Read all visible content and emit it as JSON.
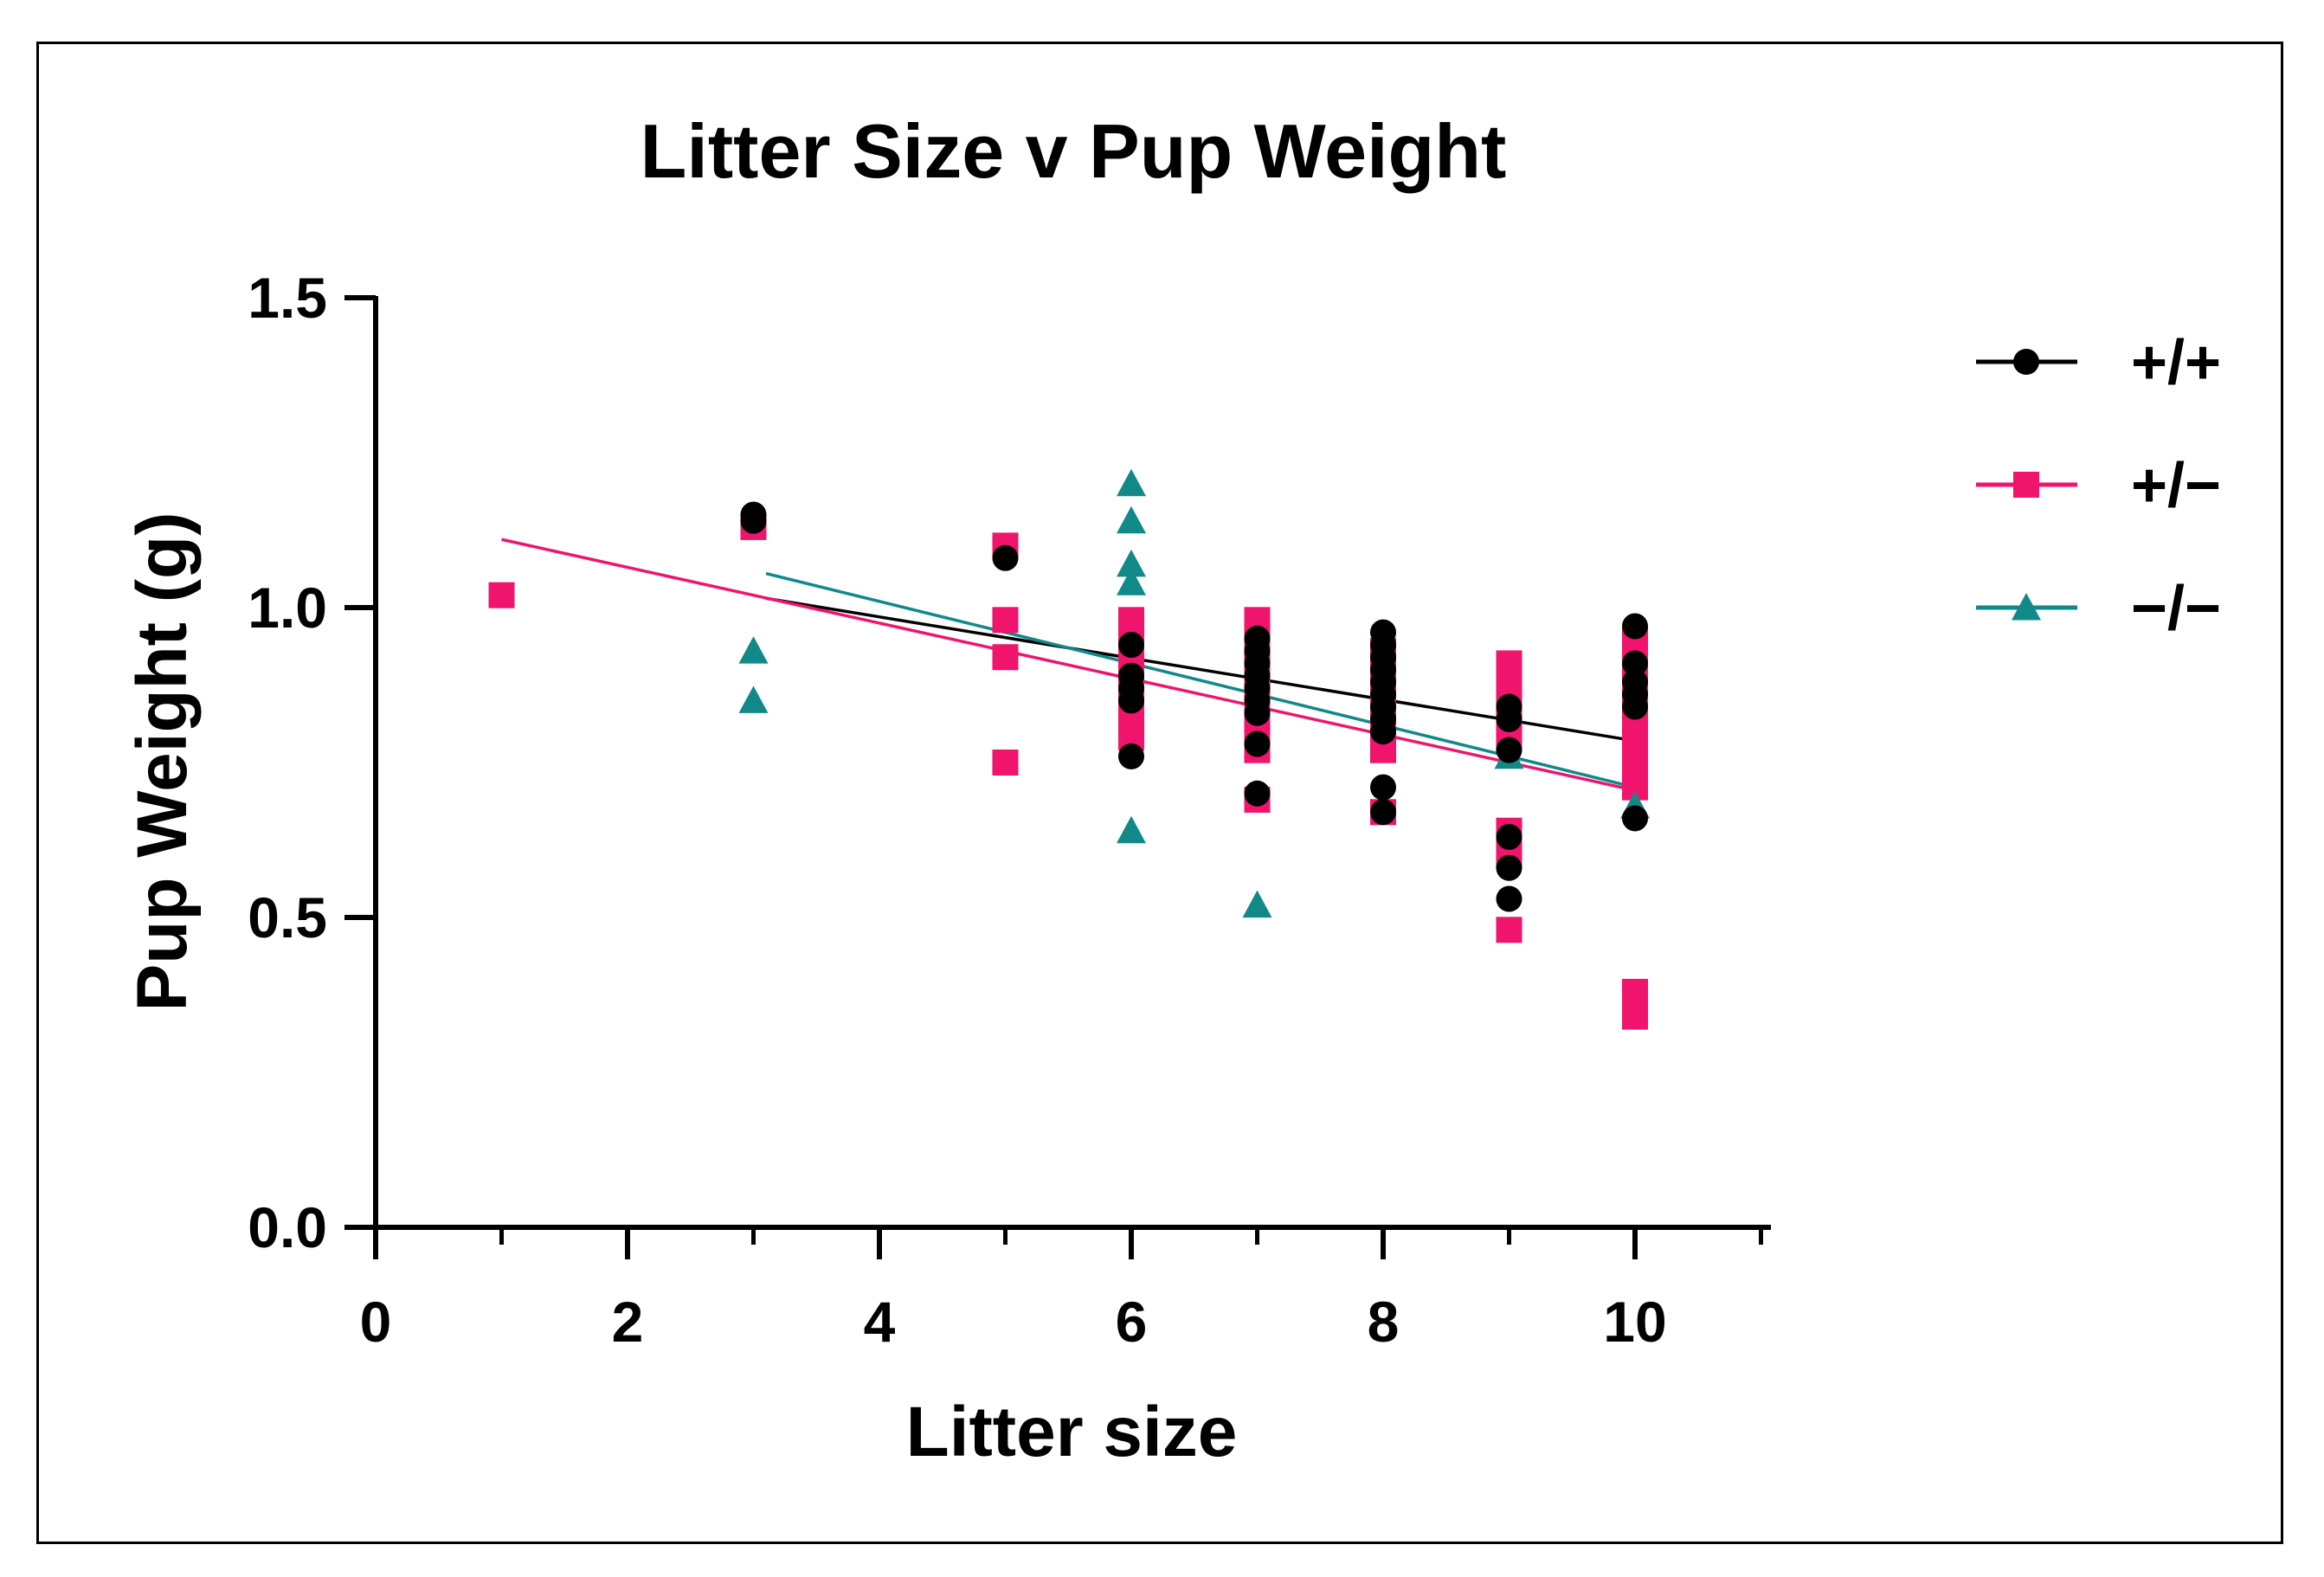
{
  "chart_data": {
    "type": "scatter",
    "title": "Litter Size v Pup Weight",
    "xlabel": "Litter size",
    "ylabel": "Pup Weight (g)",
    "xlim": [
      0,
      11
    ],
    "ylim": [
      0.0,
      1.5
    ],
    "xticks": [
      0,
      2,
      4,
      6,
      8,
      10
    ],
    "xtick_labels": [
      "0",
      "2",
      "4",
      "6",
      "8",
      "10"
    ],
    "yticks": [
      0.0,
      0.5,
      1.0,
      1.5
    ],
    "ytick_labels": [
      "0.0",
      "0.5",
      "1.0",
      "1.5"
    ],
    "legend_position": "right",
    "series": [
      {
        "name": "+/+",
        "marker": "circle",
        "color": "#000000",
        "points": [
          [
            3,
            1.15
          ],
          [
            3,
            1.14
          ],
          [
            5,
            1.08
          ],
          [
            6,
            0.94
          ],
          [
            6,
            0.89
          ],
          [
            6,
            0.87
          ],
          [
            6,
            0.85
          ],
          [
            6,
            0.76
          ],
          [
            7,
            0.95
          ],
          [
            7,
            0.93
          ],
          [
            7,
            0.91
          ],
          [
            7,
            0.89
          ],
          [
            7,
            0.87
          ],
          [
            7,
            0.85
          ],
          [
            7,
            0.83
          ],
          [
            7,
            0.78
          ],
          [
            7,
            0.7
          ],
          [
            8,
            0.96
          ],
          [
            8,
            0.94
          ],
          [
            8,
            0.92
          ],
          [
            8,
            0.9
          ],
          [
            8,
            0.88
          ],
          [
            8,
            0.86
          ],
          [
            8,
            0.84
          ],
          [
            8,
            0.82
          ],
          [
            8,
            0.8
          ],
          [
            8,
            0.71
          ],
          [
            8,
            0.67
          ],
          [
            9,
            0.84
          ],
          [
            9,
            0.82
          ],
          [
            9,
            0.77
          ],
          [
            9,
            0.63
          ],
          [
            9,
            0.58
          ],
          [
            9,
            0.53
          ],
          [
            10,
            0.97
          ],
          [
            10,
            0.91
          ],
          [
            10,
            0.88
          ],
          [
            10,
            0.86
          ],
          [
            10,
            0.84
          ],
          [
            10,
            0.66
          ]
        ],
        "trend": [
          [
            3.1,
            1.015
          ],
          [
            10,
            0.785
          ]
        ]
      },
      {
        "name": "+/−",
        "marker": "square",
        "color": "#F0146C",
        "points": [
          [
            1,
            1.02
          ],
          [
            3,
            1.13
          ],
          [
            5,
            1.1
          ],
          [
            5,
            0.98
          ],
          [
            5,
            0.92
          ],
          [
            5,
            0.75
          ],
          [
            6,
            0.98
          ],
          [
            6,
            0.96
          ],
          [
            6,
            0.93
          ],
          [
            6,
            0.9
          ],
          [
            6,
            0.86
          ],
          [
            6,
            0.83
          ],
          [
            6,
            0.79
          ],
          [
            7,
            0.98
          ],
          [
            7,
            0.95
          ],
          [
            7,
            0.92
          ],
          [
            7,
            0.89
          ],
          [
            7,
            0.86
          ],
          [
            7,
            0.83
          ],
          [
            7,
            0.8
          ],
          [
            7,
            0.77
          ],
          [
            7,
            0.69
          ],
          [
            8,
            0.93
          ],
          [
            8,
            0.9
          ],
          [
            8,
            0.87
          ],
          [
            8,
            0.84
          ],
          [
            8,
            0.8
          ],
          [
            8,
            0.77
          ],
          [
            8,
            0.67
          ],
          [
            9,
            0.91
          ],
          [
            9,
            0.88
          ],
          [
            9,
            0.85
          ],
          [
            9,
            0.82
          ],
          [
            9,
            0.79
          ],
          [
            9,
            0.64
          ],
          [
            9,
            0.6
          ],
          [
            9,
            0.48
          ],
          [
            10,
            0.95
          ],
          [
            10,
            0.92
          ],
          [
            10,
            0.89
          ],
          [
            10,
            0.86
          ],
          [
            10,
            0.83
          ],
          [
            10,
            0.8
          ],
          [
            10,
            0.77
          ],
          [
            10,
            0.74
          ],
          [
            10,
            0.71
          ],
          [
            10,
            0.38
          ],
          [
            10,
            0.36
          ],
          [
            10,
            0.34
          ]
        ],
        "trend": [
          [
            1,
            1.11
          ],
          [
            10,
            0.705
          ]
        ]
      },
      {
        "name": "−/−",
        "marker": "triangle",
        "color": "#128989",
        "points": [
          [
            3,
            0.93
          ],
          [
            3,
            0.85
          ],
          [
            6,
            1.2
          ],
          [
            6,
            1.14
          ],
          [
            6,
            1.07
          ],
          [
            6,
            1.04
          ],
          [
            6,
            0.64
          ],
          [
            7,
            0.52
          ],
          [
            9,
            0.76
          ],
          [
            10,
            0.68
          ]
        ],
        "trend": [
          [
            3.1,
            1.055
          ],
          [
            10,
            0.71
          ]
        ]
      }
    ]
  }
}
